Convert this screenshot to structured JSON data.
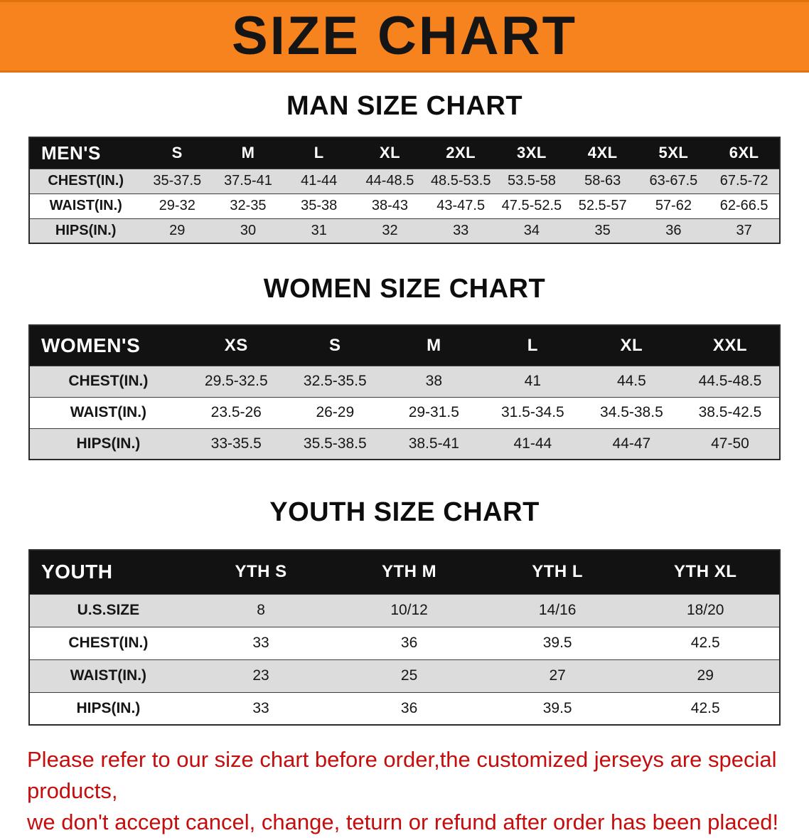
{
  "banner": {
    "title": "SIZE CHART"
  },
  "colors": {
    "banner_bg": "#F6831D",
    "table_header_bg": "#121212",
    "row_shade": "#DCDCDC",
    "disclaimer_text": "#C40D0D"
  },
  "sections": [
    {
      "heading": "MAN SIZE CHART",
      "table": {
        "header": [
          "MEN'S",
          "S",
          "M",
          "L",
          "XL",
          "2XL",
          "3XL",
          "4XL",
          "5XL",
          "6XL"
        ],
        "rows": [
          [
            "CHEST(IN.)",
            "35-37.5",
            "37.5-41",
            "41-44",
            "44-48.5",
            "48.5-53.5",
            "53.5-58",
            "58-63",
            "63-67.5",
            "67.5-72"
          ],
          [
            "WAIST(IN.)",
            "29-32",
            "32-35",
            "35-38",
            "38-43",
            "43-47.5",
            "47.5-52.5",
            "52.5-57",
            "57-62",
            "62-66.5"
          ],
          [
            "HIPS(IN.)",
            "29",
            "30",
            "31",
            "32",
            "33",
            "34",
            "35",
            "36",
            "37"
          ]
        ]
      }
    },
    {
      "heading": "WOMEN SIZE CHART",
      "table": {
        "header": [
          "WOMEN'S",
          "XS",
          "S",
          "M",
          "L",
          "XL",
          "XXL"
        ],
        "rows": [
          [
            "CHEST(IN.)",
            "29.5-32.5",
            "32.5-35.5",
            "38",
            "41",
            "44.5",
            "44.5-48.5"
          ],
          [
            "WAIST(IN.)",
            "23.5-26",
            "26-29",
            "29-31.5",
            "31.5-34.5",
            "34.5-38.5",
            "38.5-42.5"
          ],
          [
            "HIPS(IN.)",
            "33-35.5",
            "35.5-38.5",
            "38.5-41",
            "41-44",
            "44-47",
            "47-50"
          ]
        ]
      }
    },
    {
      "heading": "YOUTH SIZE CHART",
      "table": {
        "header": [
          "YOUTH",
          "YTH S",
          "YTH M",
          "YTH L",
          "YTH XL"
        ],
        "rows": [
          [
            "U.S.SIZE",
            "8",
            "10/12",
            "14/16",
            "18/20"
          ],
          [
            "CHEST(IN.)",
            "33",
            "36",
            "39.5",
            "42.5"
          ],
          [
            "WAIST(IN.)",
            "23",
            "25",
            "27",
            "29"
          ],
          [
            "HIPS(IN.)",
            "33",
            "36",
            "39.5",
            "42.5"
          ]
        ]
      }
    }
  ],
  "disclaimer": {
    "line1": "Please refer to our size chart before order,the customized jerseys are special products,",
    "line2": "we don't accept cancel, change, teturn or refund after order has been placed!"
  }
}
